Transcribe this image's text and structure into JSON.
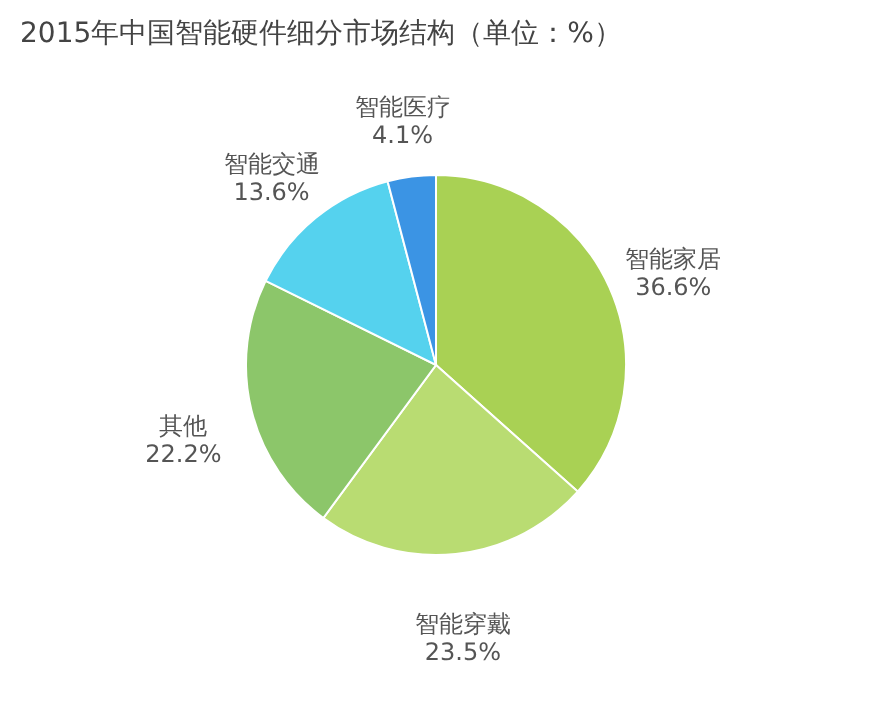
{
  "chart_data": {
    "type": "pie",
    "title": "2015年中国智能硬件细分市场结构（单位：%）",
    "categories": [
      "智能家居",
      "智能穿戴",
      "其他",
      "智能交通",
      "智能医疗"
    ],
    "values": [
      36.6,
      23.5,
      22.2,
      13.6,
      4.1
    ],
    "colors": [
      "#a9d154",
      "#b9dc72",
      "#8cc66a",
      "#55d2ee",
      "#3b94e4"
    ],
    "value_labels": [
      "36.6%",
      "23.5%",
      "22.2%",
      "13.6%",
      "4.1%"
    ],
    "legend": false
  }
}
